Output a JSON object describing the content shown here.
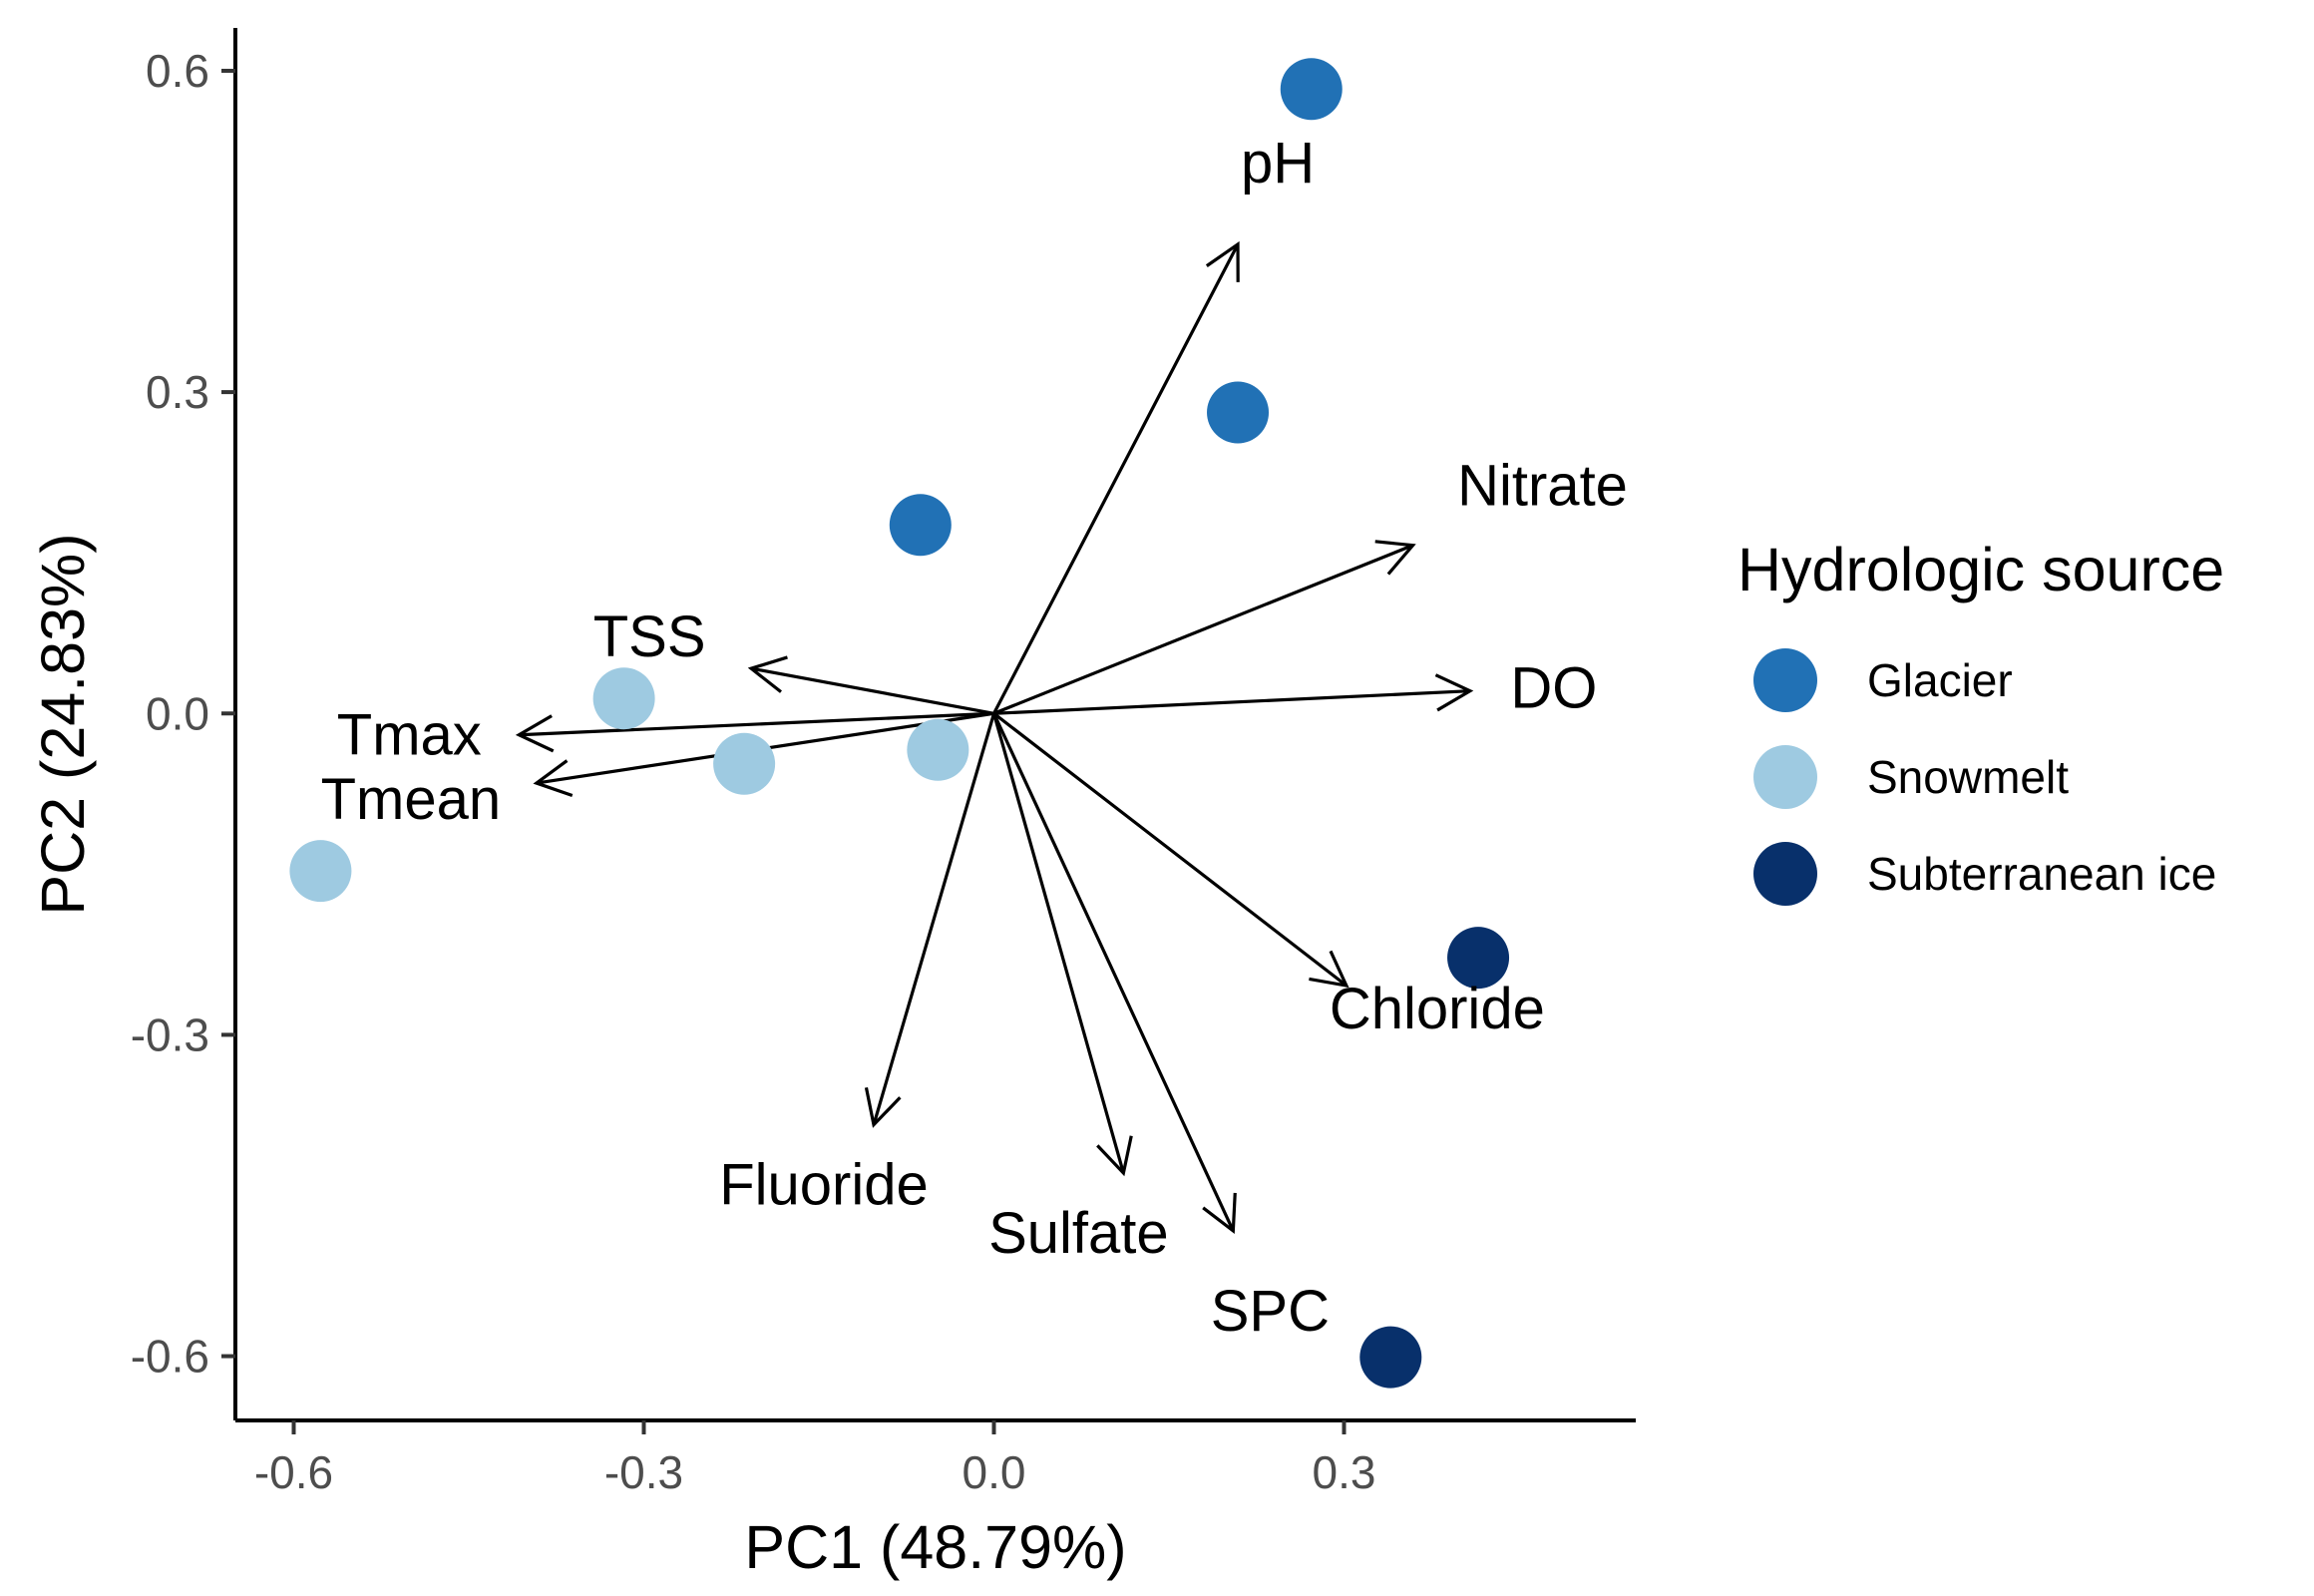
{
  "chart_data": {
    "type": "scatter",
    "subtype": "pca-biplot",
    "xlabel": "PC1 (48.79%)",
    "ylabel": "PC2 (24.83%)",
    "xlim": [
      -0.65,
      0.55
    ],
    "ylim": [
      -0.66,
      0.64
    ],
    "x_ticks": [
      -0.6,
      -0.3,
      0.0,
      0.3
    ],
    "x_tick_labels": [
      "-0.6",
      "-0.3",
      "0.0",
      "0.3"
    ],
    "y_ticks": [
      -0.6,
      -0.3,
      0.0,
      0.3,
      0.6
    ],
    "y_tick_labels": [
      "-0.6",
      "-0.3",
      "0.0",
      "0.3",
      "0.6"
    ],
    "grid": false,
    "legend": {
      "title": "Hydrologic source",
      "placement": "right",
      "entries": [
        {
          "name": "Glacier",
          "color": "#2171b5"
        },
        {
          "name": "Snowmelt",
          "color": "#9ecae1"
        },
        {
          "name": "Subterranean ice",
          "color": "#08306b"
        }
      ]
    },
    "series": [
      {
        "name": "Glacier",
        "color": "#2171b5",
        "points": [
          [
            0.272,
            0.583
          ],
          [
            0.209,
            0.281
          ],
          [
            -0.063,
            0.176
          ]
        ]
      },
      {
        "name": "Snowmelt",
        "color": "#9ecae1",
        "points": [
          [
            -0.317,
            0.014
          ],
          [
            -0.214,
            -0.047
          ],
          [
            -0.048,
            -0.034
          ],
          [
            -0.577,
            -0.147
          ]
        ]
      },
      {
        "name": "Subterranean ice",
        "color": "#08306b",
        "points": [
          [
            0.415,
            -0.228
          ],
          [
            0.34,
            -0.601
          ]
        ]
      }
    ],
    "loadings": [
      {
        "label": "pH",
        "x": 0.209,
        "y": 0.438
      },
      {
        "label": "Nitrate",
        "x": 0.359,
        "y": 0.157
      },
      {
        "label": "DO",
        "x": 0.408,
        "y": 0.021
      },
      {
        "label": "TSS",
        "x": -0.208,
        "y": 0.042
      },
      {
        "label": "Tmax",
        "x": -0.407,
        "y": -0.02
      },
      {
        "label": "Tmean",
        "x": -0.392,
        "y": -0.065
      },
      {
        "label": "Chloride",
        "x": 0.302,
        "y": -0.254
      },
      {
        "label": "Fluoride",
        "x": -0.103,
        "y": -0.384
      },
      {
        "label": "Sulfate",
        "x": 0.111,
        "y": -0.429
      },
      {
        "label": "SPC",
        "x": 0.205,
        "y": -0.483
      }
    ]
  }
}
